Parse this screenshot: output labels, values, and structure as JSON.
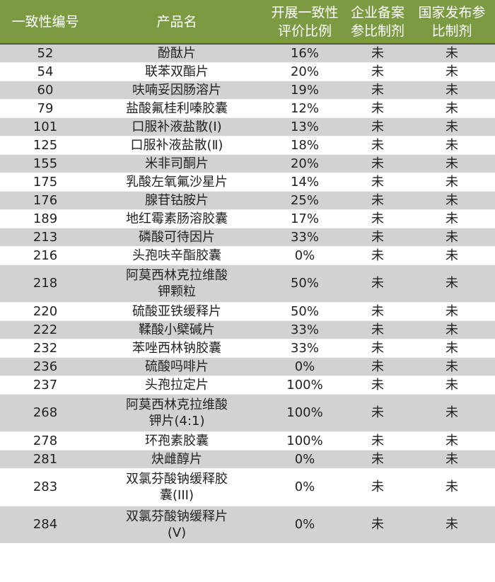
{
  "header": {
    "col_id": "一致性编号",
    "col_name": "产品名",
    "col_ratio": [
      "开展一致性",
      "评价比例"
    ],
    "col_enterprise": [
      "企业备案",
      "参比制剂"
    ],
    "col_national": [
      "国家发布参",
      "比制剂"
    ]
  },
  "colors": {
    "header_bg": "#7b9a42",
    "row_alt": "#d2d2d2"
  },
  "rows": [
    {
      "id": "52",
      "name": [
        "酚酞片"
      ],
      "ratio": "16%",
      "enterprise": "未",
      "national": "未"
    },
    {
      "id": "54",
      "name": [
        "联苯双酯片"
      ],
      "ratio": "20%",
      "enterprise": "未",
      "national": "未"
    },
    {
      "id": "60",
      "name": [
        "呋喃妥因肠溶片"
      ],
      "ratio": "19%",
      "enterprise": "未",
      "national": "未"
    },
    {
      "id": "79",
      "name": [
        "盐酸氟桂利嗪胶囊"
      ],
      "ratio": "12%",
      "enterprise": "未",
      "national": "未"
    },
    {
      "id": "101",
      "name": [
        "口服补液盐散(Ⅰ)"
      ],
      "ratio": "13%",
      "enterprise": "未",
      "national": "未"
    },
    {
      "id": "125",
      "name": [
        "口服补液盐散(Ⅱ)"
      ],
      "ratio": "18%",
      "enterprise": "未",
      "national": "未"
    },
    {
      "id": "155",
      "name": [
        "米非司酮片"
      ],
      "ratio": "20%",
      "enterprise": "未",
      "national": "未"
    },
    {
      "id": "175",
      "name": [
        "乳酸左氧氟沙星片"
      ],
      "ratio": "14%",
      "enterprise": "未",
      "national": "未"
    },
    {
      "id": "176",
      "name": [
        "腺苷钴胺片"
      ],
      "ratio": "25%",
      "enterprise": "未",
      "national": "未"
    },
    {
      "id": "189",
      "name": [
        "地红霉素肠溶胶囊"
      ],
      "ratio": "17%",
      "enterprise": "未",
      "national": "未"
    },
    {
      "id": "213",
      "name": [
        "磷酸可待因片"
      ],
      "ratio": "33%",
      "enterprise": "未",
      "national": "未"
    },
    {
      "id": "216",
      "name": [
        "头孢呋辛酯胶囊"
      ],
      "ratio": "0%",
      "enterprise": "未",
      "national": "未"
    },
    {
      "id": "218",
      "name": [
        "阿莫西林克拉维酸",
        "钾颗粒"
      ],
      "ratio": "50%",
      "enterprise": "未",
      "national": "未"
    },
    {
      "id": "220",
      "name": [
        "硫酸亚铁缓释片"
      ],
      "ratio": "50%",
      "enterprise": "未",
      "national": "未"
    },
    {
      "id": "222",
      "name": [
        "鞣酸小檗碱片"
      ],
      "ratio": "33%",
      "enterprise": "未",
      "national": "未"
    },
    {
      "id": "232",
      "name": [
        "苯唑西林钠胶囊"
      ],
      "ratio": "33%",
      "enterprise": "未",
      "national": "未"
    },
    {
      "id": "236",
      "name": [
        "硫酸吗啡片"
      ],
      "ratio": "0%",
      "enterprise": "未",
      "national": "未"
    },
    {
      "id": "237",
      "name": [
        "头孢拉定片"
      ],
      "ratio": "100%",
      "enterprise": "未",
      "national": "未"
    },
    {
      "id": "268",
      "name": [
        "阿莫西林克拉维酸",
        "钾片(4:1)"
      ],
      "ratio": "100%",
      "enterprise": "未",
      "national": "未"
    },
    {
      "id": "278",
      "name": [
        "环孢素胶囊"
      ],
      "ratio": "100%",
      "enterprise": "未",
      "national": "未"
    },
    {
      "id": "281",
      "name": [
        "炔雌醇片"
      ],
      "ratio": "0%",
      "enterprise": "未",
      "national": "未"
    },
    {
      "id": "283",
      "name": [
        "双氯芬酸钠缓释胶",
        "囊(III)"
      ],
      "ratio": "0%",
      "enterprise": "未",
      "national": "未"
    },
    {
      "id": "284",
      "name": [
        "双氯芬酸钠缓释片",
        "(Ⅴ)"
      ],
      "ratio": "0%",
      "enterprise": "未",
      "national": "未"
    }
  ]
}
